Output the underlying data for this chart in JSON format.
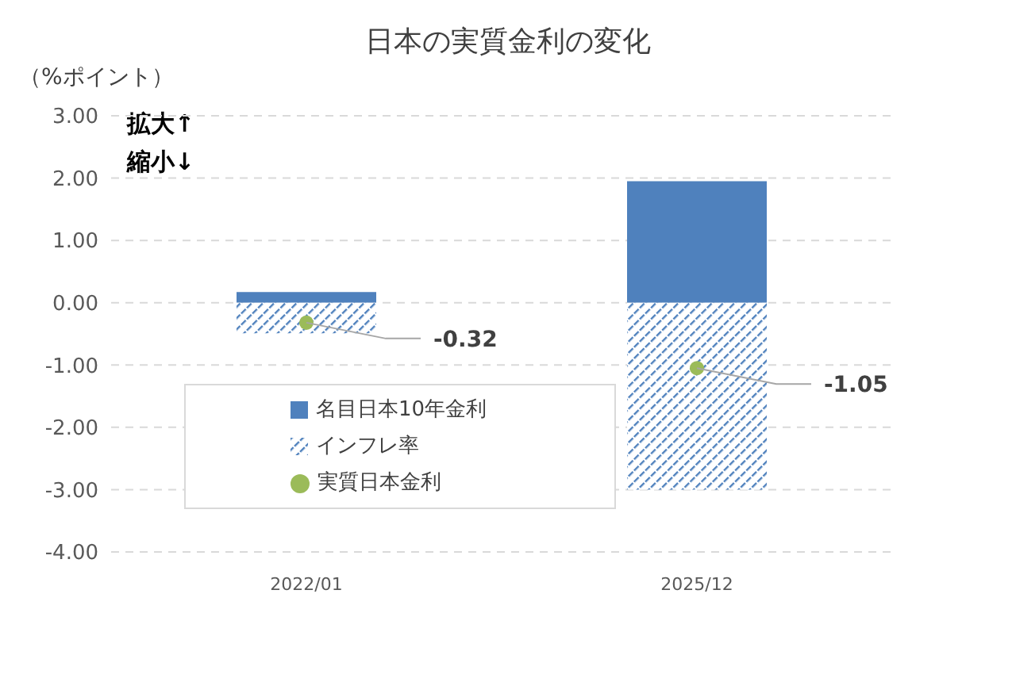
{
  "chart_data": {
    "type": "bar",
    "title": "日本の実質金利の変化",
    "categories": [
      "2022/01",
      "2025/12"
    ],
    "stacked": true,
    "series": [
      {
        "name": "名目日本10年金利",
        "color": "#4f81bd",
        "values": [
          0.17,
          1.95
        ]
      },
      {
        "name": "インフレ率",
        "color": "#4f81bd",
        "values": [
          -0.49,
          -3.0
        ]
      },
      {
        "name": "実質日本金利",
        "type": "scatter",
        "color": "#9bbb59",
        "values": [
          -0.32,
          -1.05
        ],
        "value_labels": [
          "-0.32",
          "-1.05"
        ]
      }
    ],
    "ylim": [
      -4,
      3
    ],
    "yticks": [
      {
        "value": -4,
        "label": "-4.00"
      },
      {
        "value": -3,
        "label": "-3.00"
      },
      {
        "value": -2,
        "label": "-2.00"
      },
      {
        "value": -1,
        "label": "-1.00"
      },
      {
        "value": 0,
        "label": "0.00"
      },
      {
        "value": 1,
        "label": "1.00"
      },
      {
        "value": 2,
        "label": "2.00"
      },
      {
        "value": 3,
        "label": "3.00"
      }
    ],
    "grid": "y",
    "legend": "bottom left",
    "marker": "circle",
    "annotations": [
      "（%ポイント）",
      "拡大↑",
      "縮小↓"
    ]
  }
}
